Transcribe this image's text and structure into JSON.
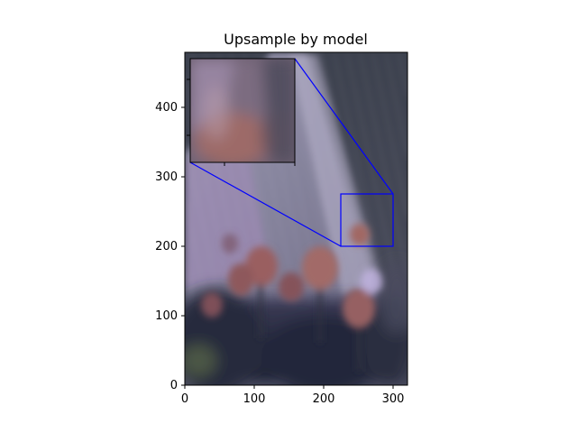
{
  "figure": {
    "title": "Upsample by model"
  },
  "image_axes": {
    "x_ticks": [
      "0",
      "100",
      "200",
      "300"
    ],
    "y_ticks": [
      "0",
      "100",
      "200",
      "300",
      "400"
    ],
    "x_range": [
      0,
      320
    ],
    "y_range": [
      0,
      480
    ]
  },
  "zoom_region": {
    "x_range": [
      225,
      300
    ],
    "y_range": [
      200,
      275
    ]
  },
  "colors": {
    "zoom_box": "#0000ff",
    "sky": "#3a3f4e",
    "building": "#8a86a6",
    "flowers": "#8d5a5f",
    "foliage": "#1e2432"
  }
}
